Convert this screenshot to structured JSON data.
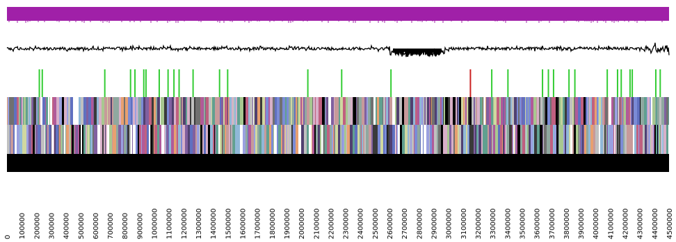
{
  "colors": {
    "background": "#ffffff",
    "top_band": "#a020a8",
    "gc_line": "#000000",
    "marker_normal": "#33cc33",
    "marker_alt": "#cc2222",
    "bottom_band": "#000000",
    "cog_palette": [
      "#000000",
      "#7b8bd6",
      "#c79a9a",
      "#8fa8a0",
      "#9aa0e0",
      "#d8b0c8",
      "#6070c0",
      "#a8c890",
      "#3a3a3a",
      "#b05a9a",
      "#c0c0c0",
      "#e8a070",
      "#504070",
      "#90b8d8",
      "#d0d8a0",
      "#707070",
      "#ffffff",
      "#8060a0",
      "#c06080",
      "#60a090"
    ]
  },
  "map": {
    "axis_min": 0,
    "axis_max": 4500000,
    "tick_labels": [
      "0",
      "100000",
      "200000",
      "300000",
      "400000",
      "500000",
      "600000",
      "700000",
      "800000",
      "900000",
      "1000000",
      "1100000",
      "1200000",
      "1300000",
      "1400000",
      "1500000",
      "1600000",
      "1700000",
      "1800000",
      "1900000",
      "2000000",
      "2100000",
      "2200000",
      "2300000",
      "2400000",
      "2500000",
      "2600000",
      "2700000",
      "2800000",
      "2900000",
      "3000000",
      "3100000",
      "3200000",
      "3300000",
      "3400000",
      "3500000",
      "3600000",
      "3700000",
      "3800000",
      "3900000",
      "4000000",
      "4100000",
      "4200000",
      "4300000",
      "4400000",
      "4500000"
    ],
    "tick_values": [
      0,
      100000,
      200000,
      300000,
      400000,
      500000,
      600000,
      700000,
      800000,
      900000,
      1000000,
      1100000,
      1200000,
      1300000,
      1400000,
      1500000,
      1600000,
      1700000,
      1800000,
      1900000,
      2000000,
      2100000,
      2200000,
      2300000,
      2400000,
      2500000,
      2600000,
      2700000,
      2800000,
      2900000,
      3000000,
      3100000,
      3200000,
      3300000,
      3400000,
      3500000,
      3600000,
      3700000,
      3800000,
      3900000,
      4000000,
      4100000,
      4200000,
      4300000,
      4400000,
      4500000
    ],
    "markers": [
      {
        "pos": 220000,
        "type": "normal"
      },
      {
        "pos": 240000,
        "type": "normal"
      },
      {
        "pos": 665000,
        "type": "normal"
      },
      {
        "pos": 840000,
        "type": "normal"
      },
      {
        "pos": 870000,
        "type": "normal"
      },
      {
        "pos": 930000,
        "type": "normal"
      },
      {
        "pos": 945000,
        "type": "normal"
      },
      {
        "pos": 1035000,
        "type": "normal"
      },
      {
        "pos": 1095000,
        "type": "normal"
      },
      {
        "pos": 1135000,
        "type": "normal"
      },
      {
        "pos": 1170000,
        "type": "normal"
      },
      {
        "pos": 1265000,
        "type": "normal"
      },
      {
        "pos": 1445000,
        "type": "normal"
      },
      {
        "pos": 1500000,
        "type": "normal"
      },
      {
        "pos": 2045000,
        "type": "normal"
      },
      {
        "pos": 2275000,
        "type": "normal"
      },
      {
        "pos": 2610000,
        "type": "normal"
      },
      {
        "pos": 3150000,
        "type": "alt"
      },
      {
        "pos": 3295000,
        "type": "normal"
      },
      {
        "pos": 3405000,
        "type": "normal"
      },
      {
        "pos": 3640000,
        "type": "normal"
      },
      {
        "pos": 3680000,
        "type": "normal"
      },
      {
        "pos": 3715000,
        "type": "normal"
      },
      {
        "pos": 3820000,
        "type": "normal"
      },
      {
        "pos": 3860000,
        "type": "normal"
      },
      {
        "pos": 4080000,
        "type": "normal"
      },
      {
        "pos": 4150000,
        "type": "normal"
      },
      {
        "pos": 4175000,
        "type": "normal"
      },
      {
        "pos": 4235000,
        "type": "normal"
      },
      {
        "pos": 4250000,
        "type": "normal"
      },
      {
        "pos": 4410000,
        "type": "normal"
      },
      {
        "pos": 4440000,
        "type": "normal"
      }
    ]
  }
}
